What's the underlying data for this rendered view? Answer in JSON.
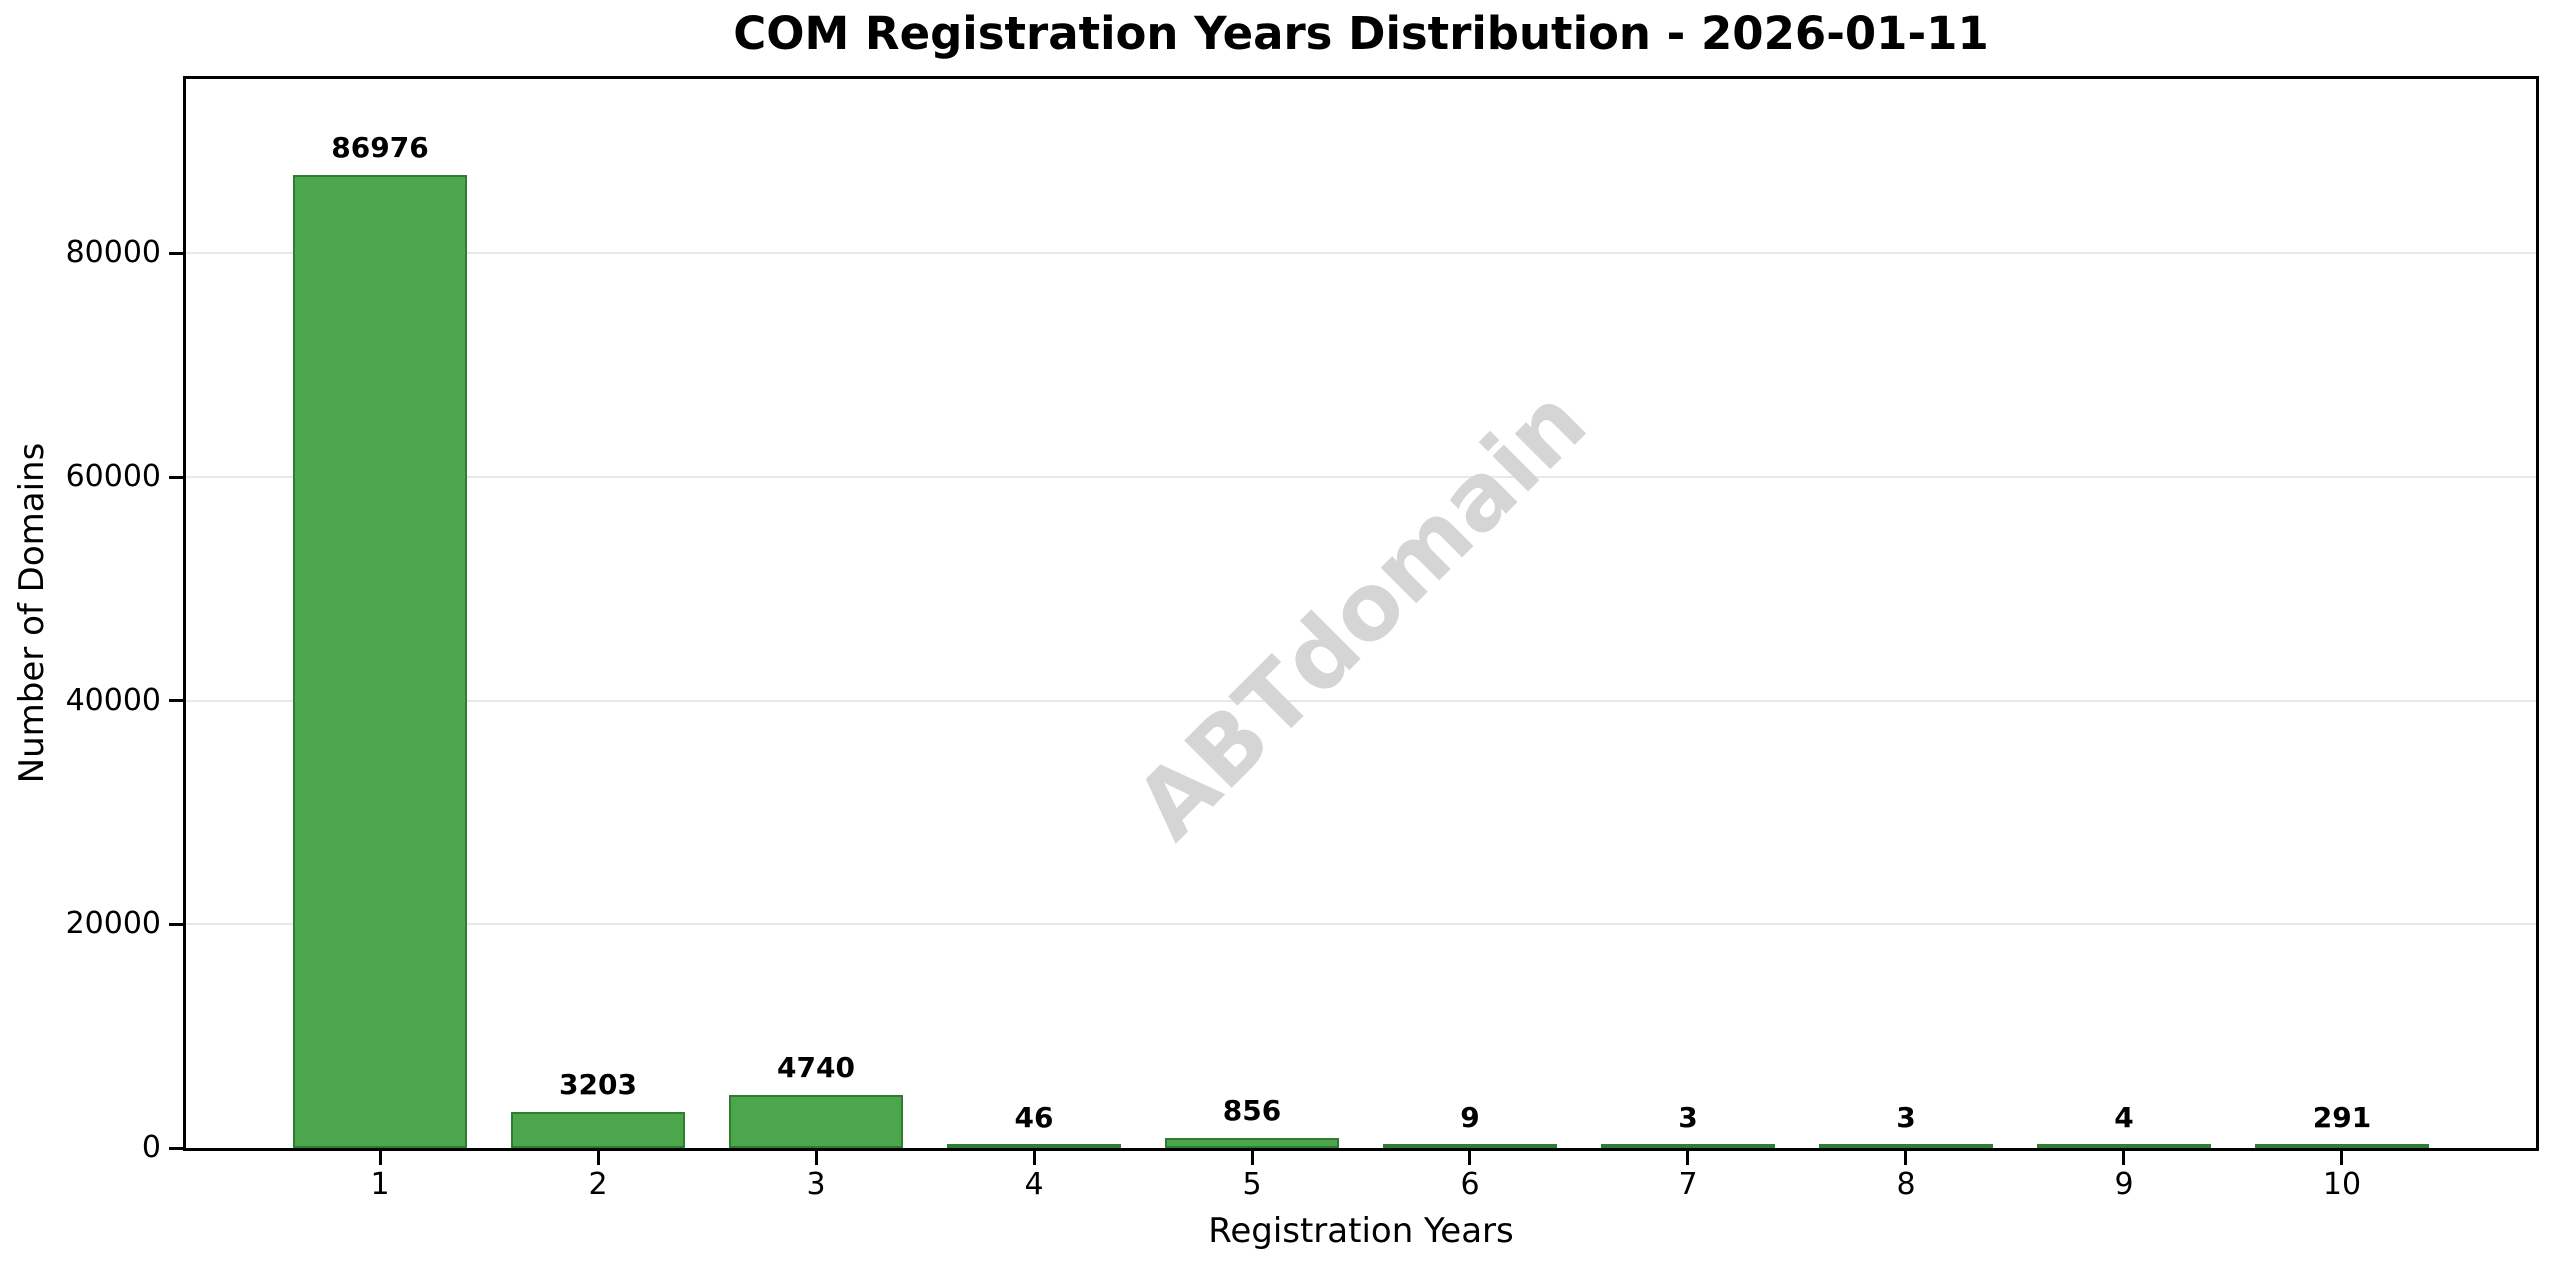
{
  "chart_data": {
    "type": "bar",
    "title": "COM Registration Years Distribution - 2026-01-11",
    "xlabel": "Registration Years",
    "ylabel": "Number of Domains",
    "categories": [
      "1",
      "2",
      "3",
      "4",
      "5",
      "6",
      "7",
      "8",
      "9",
      "10"
    ],
    "values": [
      86976,
      3203,
      4740,
      46,
      856,
      9,
      3,
      3,
      4,
      291
    ],
    "value_labels": [
      "86976",
      "3203",
      "4740",
      "46",
      "856",
      "9",
      "3",
      "3",
      "4",
      "291"
    ],
    "yticks": [
      0,
      20000,
      40000,
      60000,
      80000
    ],
    "ytick_labels": [
      "0",
      "20000",
      "40000",
      "60000",
      "80000"
    ],
    "ylim": [
      0,
      95600
    ],
    "xlim": [
      0.11,
      10.89
    ],
    "bar_width_units": 0.8,
    "grid": true,
    "legend": "none",
    "watermark": "ABTdomain",
    "colors": {
      "bar_fill": "#4CA74C",
      "bar_edge": "#2E7D32",
      "gridline": "#e8e8e8",
      "spine": "#000000",
      "watermark": "#d5d5d5",
      "text": "#000000",
      "background": "#ffffff"
    }
  }
}
